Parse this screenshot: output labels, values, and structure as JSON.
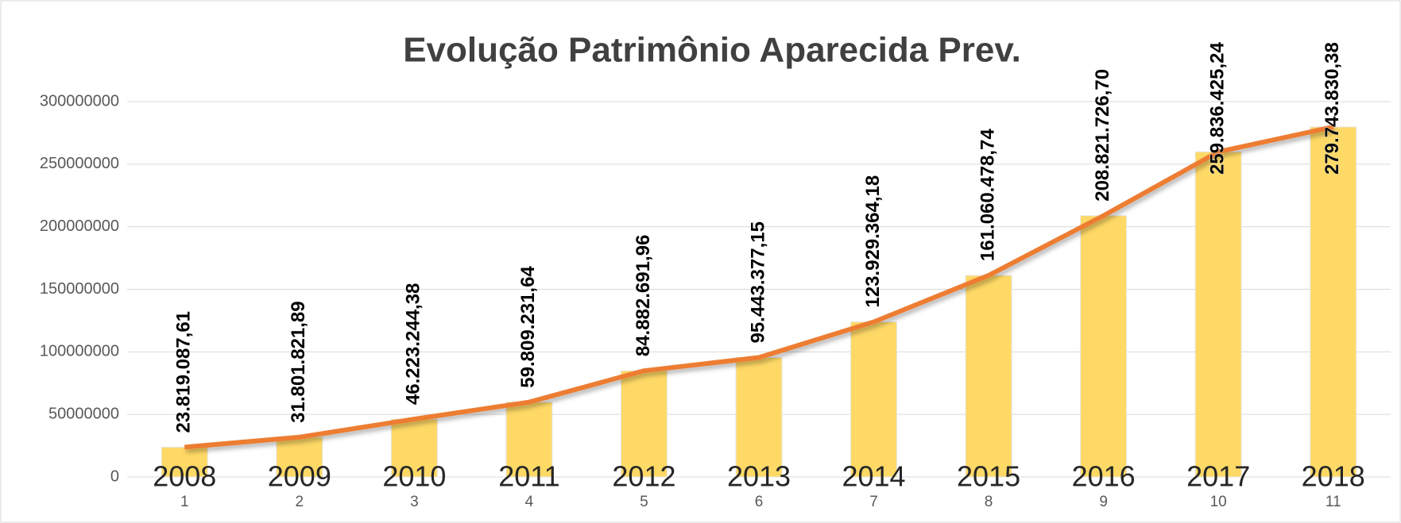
{
  "chart_data": {
    "type": "bar",
    "title": "Evolução Patrimônio Aparecida Prev.",
    "categories": [
      "1",
      "2",
      "3",
      "4",
      "5",
      "6",
      "7",
      "8",
      "9",
      "10",
      "11"
    ],
    "series": [
      {
        "type": "bar",
        "color": "#ffd966",
        "values": [
          23819087.61,
          31801821.89,
          46223244.38,
          59809231.64,
          84882691.96,
          95443377.15,
          123929364.18,
          161060478.74,
          208821726.7,
          259836425.24,
          279743830.38
        ],
        "value_labels": [
          "23.819.087,61",
          "31.801.821,89",
          "46.223.244,38",
          "59.809.231,64",
          "84.882.691,96",
          "95.443.377,15",
          "123.929.364,18",
          "161.060.478,74",
          "208.821.726,70",
          "259.836.425,24",
          "279.743.830,38"
        ]
      },
      {
        "type": "line",
        "color": "#ed7d31",
        "values": [
          23819087.61,
          31801821.89,
          46223244.38,
          59809231.64,
          84882691.96,
          95443377.15,
          123929364.18,
          161060478.74,
          208821726.7,
          259836425.24,
          279743830.38
        ]
      },
      {
        "type": "line",
        "color": "#5b9bd5",
        "show_labels": true,
        "values": [
          2008,
          2009,
          2010,
          2011,
          2012,
          2013,
          2014,
          2015,
          2016,
          2017,
          2018
        ]
      }
    ],
    "ylim": [
      0,
      300000000
    ],
    "yticks": [
      0,
      50000000,
      100000000,
      150000000,
      200000000,
      250000000,
      300000000
    ],
    "grid": true
  }
}
